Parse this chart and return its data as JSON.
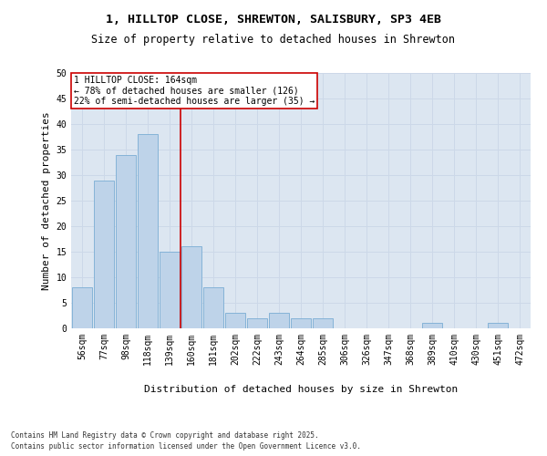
{
  "title_line1": "1, HILLTOP CLOSE, SHREWTON, SALISBURY, SP3 4EB",
  "title_line2": "Size of property relative to detached houses in Shrewton",
  "xlabel": "Distribution of detached houses by size in Shrewton",
  "ylabel": "Number of detached properties",
  "bar_categories": [
    "56sqm",
    "77sqm",
    "98sqm",
    "118sqm",
    "139sqm",
    "160sqm",
    "181sqm",
    "202sqm",
    "222sqm",
    "243sqm",
    "264sqm",
    "285sqm",
    "306sqm",
    "326sqm",
    "347sqm",
    "368sqm",
    "389sqm",
    "410sqm",
    "430sqm",
    "451sqm",
    "472sqm"
  ],
  "bar_values": [
    8,
    29,
    34,
    38,
    15,
    16,
    8,
    3,
    2,
    3,
    2,
    2,
    0,
    0,
    0,
    0,
    1,
    0,
    0,
    1,
    0
  ],
  "bar_color": "#bed3e9",
  "bar_edgecolor": "#7aadd4",
  "ylim": [
    0,
    50
  ],
  "yticks": [
    0,
    5,
    10,
    15,
    20,
    25,
    30,
    35,
    40,
    45,
    50
  ],
  "property_label": "1 HILLTOP CLOSE: 164sqm",
  "annotation_line1": "← 78% of detached houses are smaller (126)",
  "annotation_line2": "22% of semi-detached houses are larger (35) →",
  "vline_x": 4.5,
  "vline_color": "#cc0000",
  "annotation_box_facecolor": "#ffffff",
  "annotation_box_edgecolor": "#cc0000",
  "grid_color": "#ccd8e8",
  "plot_background": "#dce6f1",
  "fig_background": "#ffffff",
  "footnote_line1": "Contains HM Land Registry data © Crown copyright and database right 2025.",
  "footnote_line2": "Contains public sector information licensed under the Open Government Licence v3.0.",
  "title_fontsize": 9.5,
  "subtitle_fontsize": 8.5,
  "ylabel_fontsize": 8,
  "xlabel_fontsize": 8,
  "tick_fontsize": 7,
  "annotation_fontsize": 7,
  "footnote_fontsize": 5.5
}
